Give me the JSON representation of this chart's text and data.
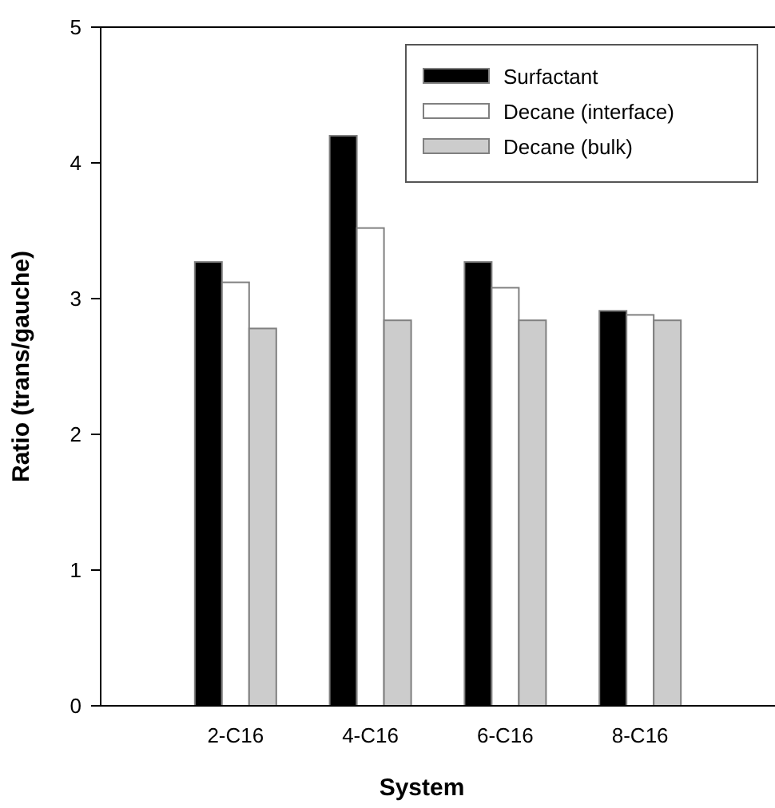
{
  "chart_data": {
    "type": "bar",
    "xlabel": "System",
    "ylabel": "Ratio (trans/gauche)",
    "categories": [
      "2-C16",
      "4-C16",
      "6-C16",
      "8-C16"
    ],
    "series": [
      {
        "name": "Surfactant",
        "color": "#000000",
        "values": [
          3.27,
          4.2,
          3.27,
          2.91
        ]
      },
      {
        "name": "Decane (interface)",
        "color": "#ffffff",
        "values": [
          3.12,
          3.52,
          3.08,
          2.88
        ]
      },
      {
        "name": "Decane (bulk)",
        "color": "#cccccc",
        "values": [
          2.78,
          2.84,
          2.84,
          2.84
        ]
      }
    ],
    "ylim": [
      0,
      5
    ],
    "yticks": [
      0,
      1,
      2,
      3,
      4,
      5
    ],
    "grid": false,
    "legend": "top right"
  }
}
